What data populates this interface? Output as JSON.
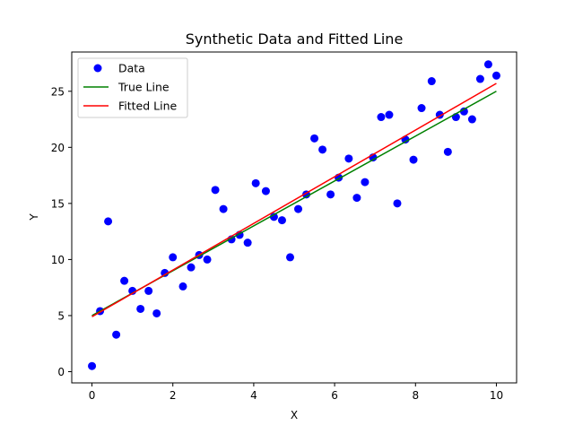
{
  "chart_data": {
    "type": "scatter",
    "title": "Synthetic Data and Fitted Line",
    "xlabel": "X",
    "ylabel": "Y",
    "xlim": [
      -0.5,
      10.5
    ],
    "ylim": [
      -1.0,
      28.5
    ],
    "xticks": [
      0,
      2,
      4,
      6,
      8,
      10
    ],
    "yticks": [
      0,
      5,
      10,
      15,
      20,
      25
    ],
    "grid": false,
    "legend": {
      "position": "top-left",
      "entries": [
        "Data",
        "True Line",
        "Fitted Line"
      ]
    },
    "colors": {
      "data": "#0000ff",
      "true_line": "#008000",
      "fitted_line": "#ff0000"
    },
    "series": [
      {
        "name": "Data",
        "kind": "scatter",
        "points": [
          [
            0.0,
            0.5
          ],
          [
            0.2,
            5.4
          ],
          [
            0.4,
            13.4
          ],
          [
            0.6,
            3.3
          ],
          [
            0.8,
            8.1
          ],
          [
            1.0,
            7.2
          ],
          [
            1.2,
            5.6
          ],
          [
            1.4,
            7.2
          ],
          [
            1.6,
            5.2
          ],
          [
            1.8,
            8.8
          ],
          [
            2.0,
            10.2
          ],
          [
            2.25,
            7.6
          ],
          [
            2.45,
            9.3
          ],
          [
            2.65,
            10.4
          ],
          [
            2.85,
            10.0
          ],
          [
            3.05,
            16.2
          ],
          [
            3.25,
            14.5
          ],
          [
            3.45,
            11.8
          ],
          [
            3.65,
            12.2
          ],
          [
            3.85,
            11.5
          ],
          [
            4.05,
            16.8
          ],
          [
            4.3,
            16.1
          ],
          [
            4.5,
            13.8
          ],
          [
            4.7,
            13.5
          ],
          [
            4.9,
            10.2
          ],
          [
            5.1,
            14.5
          ],
          [
            5.3,
            15.8
          ],
          [
            5.5,
            20.8
          ],
          [
            5.7,
            19.8
          ],
          [
            5.9,
            15.8
          ],
          [
            6.1,
            17.3
          ],
          [
            6.35,
            19.0
          ],
          [
            6.55,
            15.5
          ],
          [
            6.75,
            16.9
          ],
          [
            6.95,
            19.1
          ],
          [
            7.15,
            22.7
          ],
          [
            7.35,
            22.9
          ],
          [
            7.55,
            15.0
          ],
          [
            7.75,
            20.7
          ],
          [
            7.95,
            18.9
          ],
          [
            8.15,
            23.5
          ],
          [
            8.4,
            25.9
          ],
          [
            8.6,
            22.9
          ],
          [
            8.8,
            19.6
          ],
          [
            9.0,
            22.7
          ],
          [
            9.2,
            23.2
          ],
          [
            9.4,
            22.5
          ],
          [
            9.6,
            26.1
          ],
          [
            9.8,
            27.4
          ],
          [
            10.0,
            26.4
          ]
        ]
      },
      {
        "name": "True Line",
        "kind": "line",
        "points": [
          [
            0,
            5.0
          ],
          [
            10,
            25.0
          ]
        ]
      },
      {
        "name": "Fitted Line",
        "kind": "line",
        "points": [
          [
            0,
            4.9
          ],
          [
            10,
            25.7
          ]
        ]
      }
    ]
  }
}
